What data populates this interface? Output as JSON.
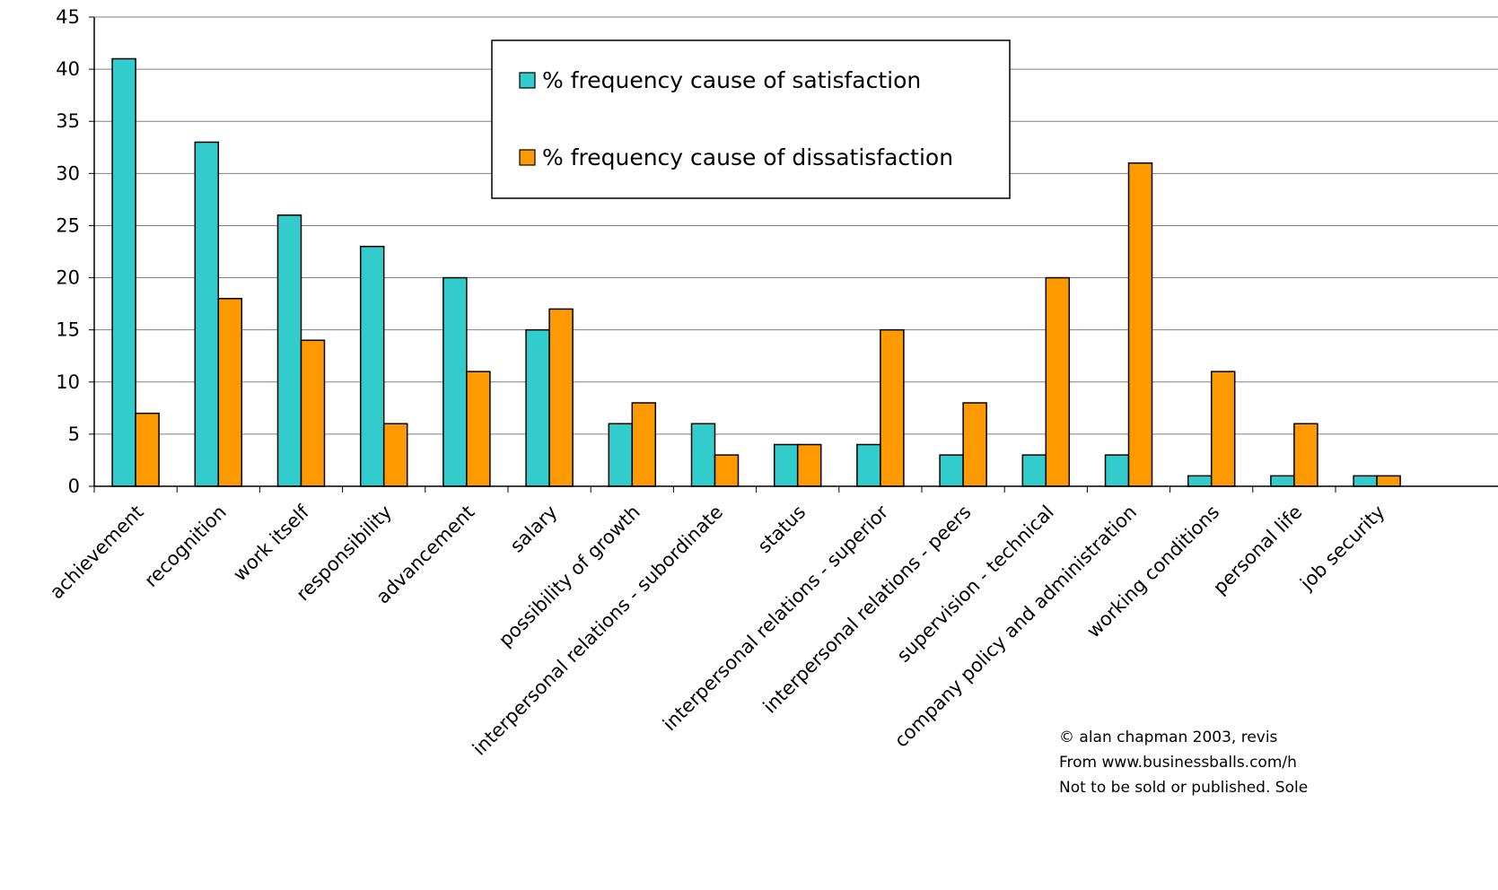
{
  "chart_data": {
    "type": "bar",
    "title": "",
    "xlabel": "",
    "ylabel": "",
    "ylim": [
      0,
      45
    ],
    "yticks": [
      0,
      5,
      10,
      15,
      20,
      25,
      30,
      35,
      40,
      45
    ],
    "grid": true,
    "legend_position": "top-center",
    "categories": [
      "achievement",
      "recognition",
      "work itself",
      "responsibility",
      "advancement",
      "salary",
      "possibility of growth",
      "interpersonal relations - subordinate",
      "status",
      "interpersonal relations - superior",
      "interpersonal relations - peers",
      "supervision - technical",
      "company policy and administration",
      "working conditions",
      "personal life",
      "job security"
    ],
    "series": [
      {
        "name": "% frequency cause of satisfaction",
        "color": "#33CCCC",
        "values": [
          41,
          33,
          26,
          23,
          20,
          15,
          6,
          6,
          4,
          4,
          3,
          3,
          3,
          1,
          1,
          1
        ]
      },
      {
        "name": "% frequency cause of dissatisfaction",
        "color": "#FF9900",
        "values": [
          7,
          18,
          14,
          6,
          11,
          17,
          8,
          3,
          4,
          15,
          8,
          20,
          31,
          11,
          6,
          1
        ]
      }
    ]
  },
  "footer": {
    "line1": "© alan chapman 2003, revis",
    "line2": "From www.businessballs.com/h",
    "line3": "Not to be sold or published. Sole"
  }
}
